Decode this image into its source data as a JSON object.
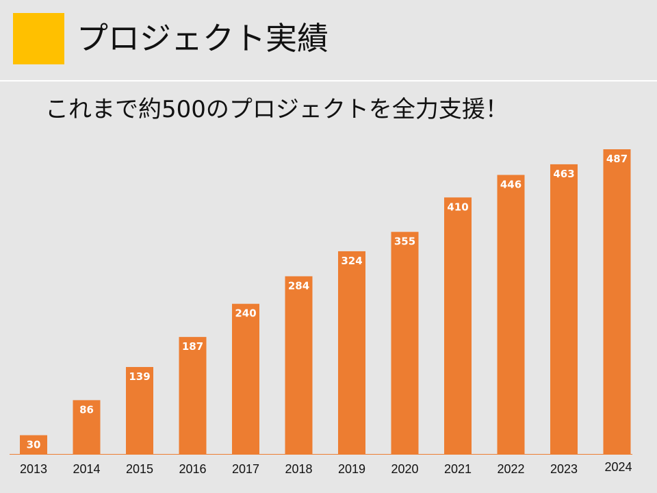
{
  "page": {
    "title": "プロジェクト実績",
    "subtitle": "これまで約500のプロジェクトを全力支援！",
    "accent_color": "#ffc000"
  },
  "chart_data": {
    "type": "bar",
    "title": "",
    "xlabel": "",
    "ylabel": "",
    "categories": [
      "2013",
      "2014",
      "2015",
      "2016",
      "2017",
      "2018",
      "2019",
      "2020",
      "2021",
      "2022",
      "2023",
      "2024"
    ],
    "values": [
      30,
      86,
      139,
      187,
      240,
      284,
      324,
      355,
      410,
      446,
      463,
      487
    ],
    "data_labels": [
      "30",
      "86",
      "139",
      "187",
      "240",
      "284",
      "324",
      "355",
      "410",
      "446",
      "463",
      "487"
    ],
    "ylim": [
      0,
      487
    ],
    "grid": false,
    "legend": "none",
    "bar_color": "#ed7d31",
    "label_color": "#ffffff",
    "axis_color": "#ed7d31"
  }
}
